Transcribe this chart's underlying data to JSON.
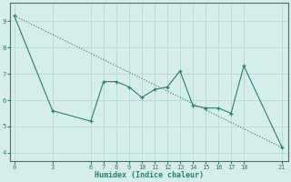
{
  "x": [
    0,
    3,
    6,
    7,
    8,
    9,
    10,
    11,
    12,
    13,
    14,
    15,
    16,
    17,
    18,
    21
  ],
  "y": [
    9.2,
    5.6,
    5.2,
    6.7,
    6.7,
    6.5,
    6.1,
    6.4,
    6.5,
    7.1,
    5.8,
    5.7,
    5.7,
    5.5,
    7.3,
    4.2
  ],
  "trend_x": [
    0,
    21
  ],
  "trend_y": [
    9.2,
    4.2
  ],
  "line_color": "#2e7d6e",
  "bg_color": "#d6eeea",
  "grid_color": "#b8d8d2",
  "xlabel": "Humidex (Indice chaleur)",
  "xticks": [
    0,
    3,
    6,
    7,
    8,
    9,
    10,
    11,
    12,
    13,
    14,
    15,
    16,
    17,
    18,
    21
  ],
  "yticks": [
    4,
    5,
    6,
    7,
    8,
    9
  ],
  "ylim": [
    3.7,
    9.7
  ],
  "xlim": [
    -0.3,
    21.5
  ]
}
